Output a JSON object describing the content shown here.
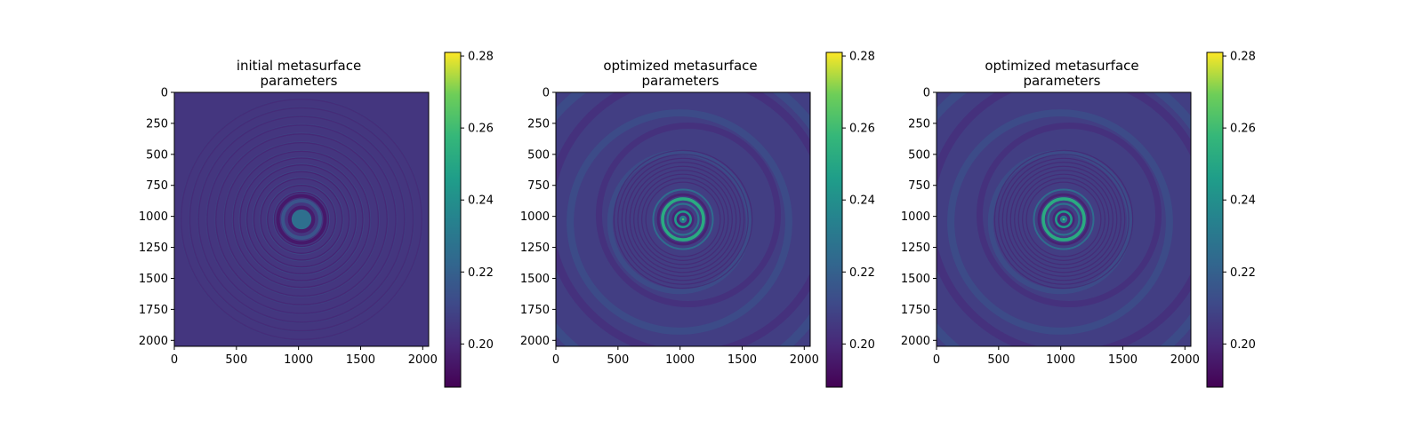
{
  "chart_data": [
    {
      "type": "heatmap",
      "title": "initial metasurface\nparameters",
      "xlabel": "",
      "ylabel": "",
      "xlim": [
        0,
        2048
      ],
      "ylim": [
        2048,
        0
      ],
      "xticks": [
        0,
        500,
        1000,
        1500,
        2000
      ],
      "yticks": [
        0,
        250,
        500,
        750,
        1000,
        1250,
        1500,
        1750,
        2000
      ],
      "colormap": "viridis",
      "colorbar": {
        "range": [
          0.188,
          0.281
        ],
        "ticks": [
          0.2,
          0.22,
          0.24,
          0.26,
          0.28
        ]
      },
      "center": [
        1024,
        1024
      ],
      "pattern": "concentric rings; bright core ~0.225 at center, fringes fading outward on ~0.205 background"
    },
    {
      "type": "heatmap",
      "title": "optimized metasurface\nparameters",
      "xlabel": "",
      "ylabel": "",
      "xlim": [
        0,
        2048
      ],
      "ylim": [
        2048,
        0
      ],
      "xticks": [
        0,
        500,
        1000,
        1500,
        2000
      ],
      "yticks": [
        0,
        250,
        500,
        750,
        1000,
        1250,
        1500,
        1750,
        2000
      ],
      "colormap": "viridis",
      "colorbar": {
        "range": [
          0.188,
          0.281
        ],
        "ticks": [
          0.2,
          0.22,
          0.24,
          0.26,
          0.28
        ]
      },
      "center": [
        1024,
        1024
      ],
      "pattern": "bright rings ~0.25 near center, broad faint swirl rings across field"
    },
    {
      "type": "heatmap",
      "title": "optimized metasurface\nparameters",
      "xlabel": "",
      "ylabel": "",
      "xlim": [
        0,
        2048
      ],
      "ylim": [
        2048,
        0
      ],
      "xticks": [
        0,
        500,
        1000,
        1500,
        2000
      ],
      "yticks": [
        0,
        250,
        500,
        750,
        1000,
        1250,
        1500,
        1750,
        2000
      ],
      "colormap": "viridis",
      "colorbar": {
        "range": [
          0.188,
          0.281
        ],
        "ticks": [
          0.2,
          0.22,
          0.24,
          0.26,
          0.28
        ]
      },
      "center": [
        1024,
        1024
      ],
      "pattern": "bright rings ~0.25 near center, broad faint swirl rings across field"
    }
  ]
}
